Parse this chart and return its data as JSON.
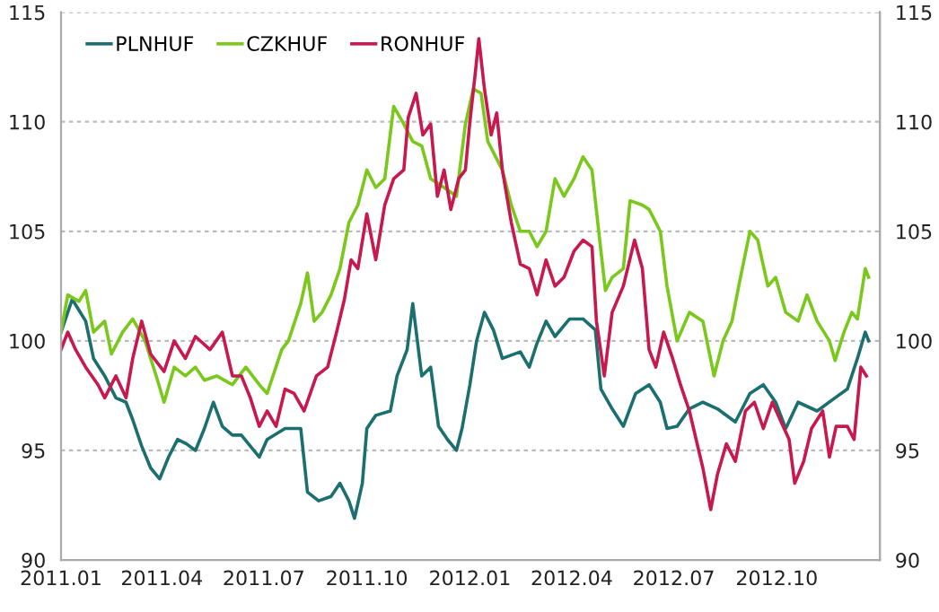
{
  "chart_data": {
    "type": "line",
    "legend": "top left",
    "grid": "y",
    "line_style": "solid",
    "marker": "none",
    "xlim": [
      "2011-01-01",
      "2013-01-01"
    ],
    "xticks": [
      {
        "value": "2011-01-01",
        "label": "2011.01"
      },
      {
        "value": "2011-04-01",
        "label": "2011.04"
      },
      {
        "value": "2011-07-01",
        "label": "2011.07"
      },
      {
        "value": "2011-10-01",
        "label": "2011.10"
      },
      {
        "value": "2012-01-01",
        "label": "2012.01"
      },
      {
        "value": "2012-04-01",
        "label": "2012.04"
      },
      {
        "value": "2012-07-01",
        "label": "2012.07"
      },
      {
        "value": "2012-10-01",
        "label": "2012.10"
      }
    ],
    "ylim": [
      90,
      115
    ],
    "yticks": [
      90,
      95,
      100,
      105,
      110,
      115
    ],
    "y2lim": [
      90,
      115
    ],
    "y2ticks": [
      90,
      95,
      100,
      105,
      110,
      115
    ],
    "series": [
      {
        "name": "PLNHUF",
        "color": "#1b6f6f",
        "x": [
          "2011-01-01",
          "2011-01-11",
          "2011-01-23",
          "2011-01-30",
          "2011-02-09",
          "2011-02-19",
          "2011-02-28",
          "2011-03-06",
          "2011-03-14",
          "2011-03-22",
          "2011-03-30",
          "2011-04-07",
          "2011-04-15",
          "2011-04-23",
          "2011-05-01",
          "2011-05-09",
          "2011-05-17",
          "2011-05-25",
          "2011-06-03",
          "2011-06-11",
          "2011-06-19",
          "2011-06-27",
          "2011-07-04",
          "2011-07-20",
          "2011-08-03",
          "2011-08-09",
          "2011-08-19",
          "2011-08-30",
          "2011-09-07",
          "2011-09-15",
          "2011-09-20",
          "2011-09-27",
          "2011-10-01",
          "2011-10-09",
          "2011-10-22",
          "2011-10-28",
          "2011-11-06",
          "2011-11-11",
          "2011-11-19",
          "2011-11-27",
          "2011-12-04",
          "2011-12-12",
          "2011-12-20",
          "2011-12-25",
          "2012-01-01",
          "2012-01-07",
          "2012-01-14",
          "2012-01-22",
          "2012-01-30",
          "2012-02-15",
          "2012-02-23",
          "2012-03-01",
          "2012-03-09",
          "2012-03-17",
          "2012-03-30",
          "2012-04-11",
          "2012-04-22",
          "2012-04-27",
          "2012-05-07",
          "2012-05-17",
          "2012-05-28",
          "2012-06-09",
          "2012-06-19",
          "2012-06-25",
          "2012-07-04",
          "2012-07-15",
          "2012-07-27",
          "2012-08-09",
          "2012-08-25",
          "2012-09-07",
          "2012-09-19",
          "2012-09-30",
          "2012-10-09",
          "2012-10-20",
          "2012-11-06",
          "2012-11-22",
          "2012-12-03",
          "2012-12-12",
          "2012-12-19",
          "2012-12-22"
        ],
        "values": [
          100.4,
          101.9,
          100.9,
          99.2,
          98.4,
          97.4,
          97.2,
          96.4,
          95.2,
          94.2,
          93.7,
          94.7,
          95.5,
          95.3,
          95.0,
          96.0,
          97.2,
          96.1,
          95.7,
          95.7,
          95.2,
          94.7,
          95.5,
          96.0,
          96.0,
          93.1,
          92.7,
          92.9,
          93.5,
          92.7,
          91.9,
          93.5,
          96.0,
          96.6,
          96.8,
          98.4,
          99.6,
          101.7,
          98.4,
          98.8,
          96.1,
          95.5,
          95.0,
          96.0,
          98.0,
          100.0,
          101.3,
          100.5,
          99.2,
          99.5,
          98.8,
          99.9,
          100.9,
          100.2,
          101.0,
          101.0,
          100.5,
          97.8,
          96.9,
          96.1,
          97.6,
          98.0,
          97.2,
          96.0,
          96.1,
          96.9,
          97.2,
          96.9,
          96.3,
          97.6,
          98.0,
          97.2,
          96.0,
          97.2,
          96.8,
          97.4,
          97.8,
          99.2,
          100.4,
          100.0
        ]
      },
      {
        "name": "CZKHUF",
        "color": "#7ac81c",
        "x": [
          "2011-01-01",
          "2011-01-07",
          "2011-01-17",
          "2011-01-23",
          "2011-01-30",
          "2011-02-09",
          "2011-02-15",
          "2011-02-25",
          "2011-03-06",
          "2011-03-17",
          "2011-03-27",
          "2011-04-03",
          "2011-04-12",
          "2011-04-22",
          "2011-05-01",
          "2011-05-09",
          "2011-05-20",
          "2011-06-03",
          "2011-06-15",
          "2011-06-27",
          "2011-07-04",
          "2011-07-17",
          "2011-07-23",
          "2011-08-03",
          "2011-08-09",
          "2011-08-15",
          "2011-08-22",
          "2011-08-30",
          "2011-09-07",
          "2011-09-15",
          "2011-09-23",
          "2011-10-01",
          "2011-10-09",
          "2011-10-17",
          "2011-10-25",
          "2011-11-03",
          "2011-11-11",
          "2011-11-19",
          "2011-11-27",
          "2011-12-09",
          "2011-12-20",
          "2011-12-28",
          "2012-01-04",
          "2012-01-11",
          "2012-01-17",
          "2012-01-22",
          "2012-01-30",
          "2012-02-07",
          "2012-02-15",
          "2012-02-23",
          "2012-03-01",
          "2012-03-09",
          "2012-03-17",
          "2012-03-25",
          "2012-04-03",
          "2012-04-11",
          "2012-04-19",
          "2012-04-27",
          "2012-05-01",
          "2012-05-07",
          "2012-05-17",
          "2012-05-23",
          "2012-06-03",
          "2012-06-09",
          "2012-06-19",
          "2012-06-25",
          "2012-07-04",
          "2012-07-15",
          "2012-07-27",
          "2012-08-06",
          "2012-08-14",
          "2012-08-22",
          "2012-08-28",
          "2012-09-07",
          "2012-09-14",
          "2012-09-23",
          "2012-09-30",
          "2012-10-09",
          "2012-10-20",
          "2012-10-28",
          "2012-11-06",
          "2012-11-17",
          "2012-11-22",
          "2012-11-30",
          "2012-12-07",
          "2012-12-12",
          "2012-12-19",
          "2012-12-22"
        ],
        "values": [
          100.4,
          102.1,
          101.8,
          102.3,
          100.4,
          100.9,
          99.4,
          100.4,
          101.0,
          100.0,
          98.4,
          97.2,
          98.8,
          98.4,
          98.8,
          98.2,
          98.4,
          98.0,
          98.8,
          98.0,
          97.6,
          99.6,
          100.0,
          101.7,
          103.1,
          100.9,
          101.3,
          102.1,
          103.3,
          105.4,
          106.2,
          107.8,
          107.0,
          107.4,
          110.7,
          109.9,
          109.1,
          108.9,
          107.4,
          107.0,
          106.6,
          109.9,
          111.5,
          111.3,
          109.1,
          108.6,
          107.8,
          106.2,
          105.0,
          105.0,
          104.3,
          105.0,
          107.4,
          106.6,
          107.4,
          108.4,
          107.8,
          104.1,
          102.3,
          102.9,
          103.3,
          106.4,
          106.2,
          106.0,
          105.0,
          102.5,
          100.0,
          101.3,
          100.9,
          98.4,
          100.0,
          100.9,
          102.5,
          105.0,
          104.6,
          102.5,
          102.9,
          101.3,
          100.9,
          102.1,
          100.9,
          100.0,
          99.1,
          100.4,
          101.3,
          101.0,
          103.3,
          102.9
        ]
      },
      {
        "name": "RONHUF",
        "color": "#c8194f",
        "x": [
          "2011-01-01",
          "2011-01-07",
          "2011-01-14",
          "2011-01-23",
          "2011-02-03",
          "2011-02-09",
          "2011-02-19",
          "2011-02-28",
          "2011-03-06",
          "2011-03-14",
          "2011-03-22",
          "2011-04-03",
          "2011-04-12",
          "2011-04-22",
          "2011-05-01",
          "2011-05-14",
          "2011-05-25",
          "2011-06-03",
          "2011-06-11",
          "2011-06-19",
          "2011-06-27",
          "2011-07-04",
          "2011-07-12",
          "2011-07-20",
          "2011-07-28",
          "2011-08-06",
          "2011-08-17",
          "2011-08-27",
          "2011-09-04",
          "2011-09-11",
          "2011-09-17",
          "2011-09-23",
          "2011-10-01",
          "2011-10-09",
          "2011-10-17",
          "2011-10-25",
          "2011-11-03",
          "2011-11-07",
          "2011-11-14",
          "2011-11-20",
          "2011-11-27",
          "2011-12-03",
          "2011-12-09",
          "2011-12-15",
          "2011-12-22",
          "2011-12-28",
          "2012-01-01",
          "2012-01-06",
          "2012-01-09",
          "2012-01-14",
          "2012-01-20",
          "2012-01-25",
          "2012-01-30",
          "2012-02-07",
          "2012-02-15",
          "2012-02-23",
          "2012-03-01",
          "2012-03-09",
          "2012-03-17",
          "2012-03-25",
          "2012-04-03",
          "2012-04-11",
          "2012-04-19",
          "2012-04-23",
          "2012-04-30",
          "2012-05-07",
          "2012-05-17",
          "2012-05-27",
          "2012-06-03",
          "2012-06-09",
          "2012-06-15",
          "2012-06-22",
          "2012-06-30",
          "2012-07-07",
          "2012-07-15",
          "2012-07-27",
          "2012-08-03",
          "2012-08-09",
          "2012-08-17",
          "2012-08-25",
          "2012-09-03",
          "2012-09-11",
          "2012-09-19",
          "2012-09-27",
          "2012-10-04",
          "2012-10-12",
          "2012-10-17",
          "2012-10-25",
          "2012-11-01",
          "2012-11-11",
          "2012-11-17",
          "2012-11-23",
          "2012-12-03",
          "2012-12-09",
          "2012-12-15",
          "2012-12-20"
        ],
        "values": [
          99.6,
          100.4,
          99.6,
          98.8,
          98.0,
          97.4,
          98.4,
          97.4,
          99.2,
          100.9,
          99.4,
          98.6,
          100.0,
          99.2,
          100.2,
          99.6,
          100.4,
          98.4,
          98.4,
          97.4,
          96.1,
          96.8,
          96.1,
          97.8,
          97.6,
          96.8,
          98.4,
          98.8,
          100.4,
          101.9,
          103.7,
          103.3,
          105.8,
          103.7,
          106.2,
          107.4,
          107.8,
          110.2,
          111.3,
          109.4,
          109.9,
          106.6,
          107.8,
          106.0,
          107.4,
          107.8,
          110.0,
          112.3,
          113.8,
          111.5,
          109.4,
          110.4,
          107.8,
          105.4,
          103.5,
          103.3,
          102.1,
          103.7,
          102.5,
          102.9,
          104.1,
          104.6,
          104.3,
          100.9,
          98.4,
          101.3,
          102.5,
          104.6,
          103.3,
          99.6,
          98.8,
          100.4,
          99.2,
          98.0,
          96.8,
          94.2,
          92.3,
          93.9,
          95.3,
          94.5,
          96.8,
          97.2,
          96.0,
          97.2,
          96.4,
          95.5,
          93.5,
          94.5,
          96.0,
          96.8,
          94.7,
          96.1,
          96.1,
          95.5,
          98.8,
          98.4
        ]
      }
    ]
  }
}
